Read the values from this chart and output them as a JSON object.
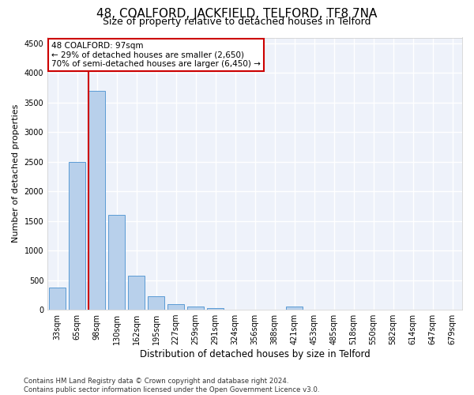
{
  "title": "48, COALFORD, JACKFIELD, TELFORD, TF8 7NA",
  "subtitle": "Size of property relative to detached houses in Telford",
  "xlabel": "Distribution of detached houses by size in Telford",
  "ylabel": "Number of detached properties",
  "categories": [
    "33sqm",
    "65sqm",
    "98sqm",
    "130sqm",
    "162sqm",
    "195sqm",
    "227sqm",
    "259sqm",
    "291sqm",
    "324sqm",
    "356sqm",
    "388sqm",
    "421sqm",
    "453sqm",
    "485sqm",
    "518sqm",
    "550sqm",
    "582sqm",
    "614sqm",
    "647sqm",
    "679sqm"
  ],
  "values": [
    370,
    2500,
    3700,
    1600,
    575,
    225,
    100,
    50,
    30,
    5,
    3,
    0,
    60,
    0,
    0,
    0,
    0,
    0,
    0,
    0,
    0
  ],
  "bar_color": "#b8d0eb",
  "bar_edge_color": "#5b9bd5",
  "vline_color": "#cc0000",
  "annotation_text": "48 COALFORD: 97sqm\n← 29% of detached houses are smaller (2,650)\n70% of semi-detached houses are larger (6,450) →",
  "annotation_box_color": "#ffffff",
  "annotation_box_edge": "#cc0000",
  "ylim": [
    0,
    4600
  ],
  "yticks": [
    0,
    500,
    1000,
    1500,
    2000,
    2500,
    3000,
    3500,
    4000,
    4500
  ],
  "background_color": "#eef2fa",
  "grid_color": "#ffffff",
  "footer": "Contains HM Land Registry data © Crown copyright and database right 2024.\nContains public sector information licensed under the Open Government Licence v3.0.",
  "title_fontsize": 11,
  "subtitle_fontsize": 9,
  "xlabel_fontsize": 8.5,
  "ylabel_fontsize": 8,
  "tick_fontsize": 7,
  "annotation_fontsize": 7.5,
  "footer_fontsize": 6.2
}
